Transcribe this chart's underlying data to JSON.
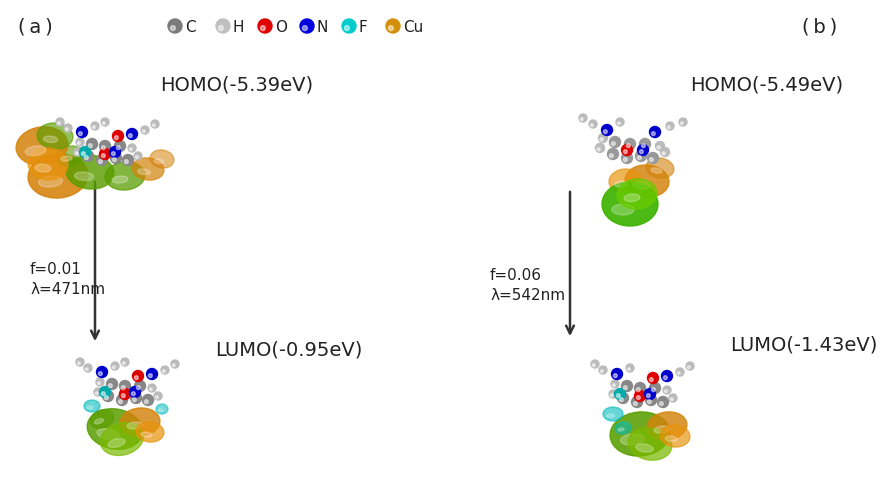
{
  "background_color": "#ffffff",
  "panel_a": {
    "lumo_label": "LUMO(-0.95eV)",
    "homo_label": "HOMO(-5.39eV)",
    "arrow_label_line1": "λ=471nm",
    "arrow_label_line2": "f=0.01",
    "label": "( a )"
  },
  "panel_b": {
    "lumo_label": "LUMO(-1.43eV)",
    "homo_label": "HOMO(-5.49eV)",
    "arrow_label_line1": "λ=542nm",
    "arrow_label_line2": "f=0.06",
    "label": "( b )"
  },
  "legend": {
    "items": [
      {
        "label": "C",
        "color": "#7a7a7a"
      },
      {
        "label": "H",
        "color": "#c0c0c0"
      },
      {
        "label": "O",
        "color": "#e00000"
      },
      {
        "label": "N",
        "color": "#0000dd"
      },
      {
        "label": "F",
        "color": "#00cccc"
      },
      {
        "label": "Cu",
        "color": "#d4900a"
      }
    ]
  },
  "text_color": "#222222",
  "font_size_labels": 13,
  "font_size_legend": 11,
  "font_size_panel": 14,
  "font_size_arrow": 11
}
